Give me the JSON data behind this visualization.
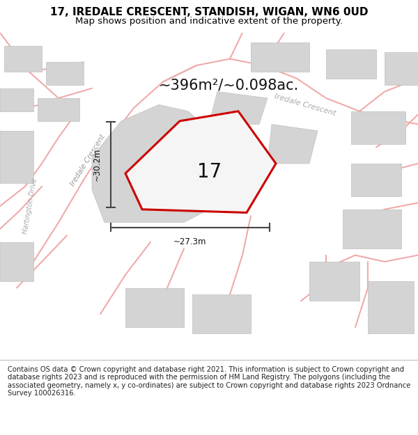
{
  "title_line1": "17, IREDALE CRESCENT, STANDISH, WIGAN, WN6 0UD",
  "title_line2": "Map shows position and indicative extent of the property.",
  "footer_text": "Contains OS data © Crown copyright and database right 2021. This information is subject to Crown copyright and database rights 2023 and is reproduced with the permission of HM Land Registry. The polygons (including the associated geometry, namely x, y co-ordinates) are subject to Crown copyright and database rights 2023 Ordnance Survey 100026316.",
  "area_label": "~396m²/~0.098ac.",
  "number_label": "17",
  "dim_vertical": "~30.2m",
  "dim_horizontal": "~27.3m",
  "road_color": "#f0aaaa",
  "building_color": "#d4d4d4",
  "building_edge": "#c0c0c0",
  "plot_edge_color": "#cc0000",
  "dim_line_color": "#444444",
  "map_bg": "#ffffff",
  "footer_bg": "#ffffff",
  "title_fontsize": 11,
  "subtitle_fontsize": 9.5,
  "area_fontsize": 15,
  "number_fontsize": 20,
  "footer_fontsize": 7.2
}
